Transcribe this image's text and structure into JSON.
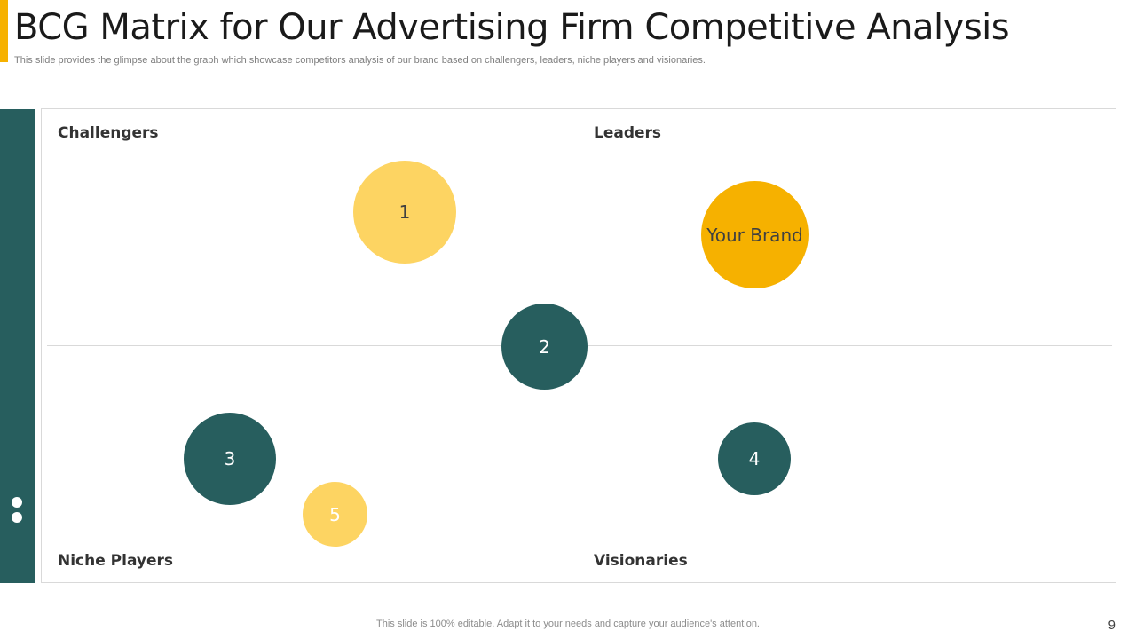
{
  "header": {
    "title": "BCG Matrix for Our Advertising Firm Competitive Analysis",
    "subtitle": "This slide provides the glimpse about the graph which showcase competitors analysis of our brand based on challengers, leaders, niche players and visionaries."
  },
  "quadrants": {
    "top_left": "Challengers",
    "top_right": "Leaders",
    "bottom_left": "Niche Players",
    "bottom_right": "Visionaries"
  },
  "bubbles": {
    "b1": "1",
    "b2": "2",
    "b3": "3",
    "b4": "4",
    "b5": "5",
    "brand": "Your Brand"
  },
  "colors": {
    "accent": "#F6B100",
    "teal": "#275E5E",
    "light_yellow": "#FDD462",
    "gold": "#F6B100"
  },
  "footer": {
    "note": "This slide is 100% editable. Adapt it to your needs and capture your audience's attention.",
    "page_number": "9"
  }
}
